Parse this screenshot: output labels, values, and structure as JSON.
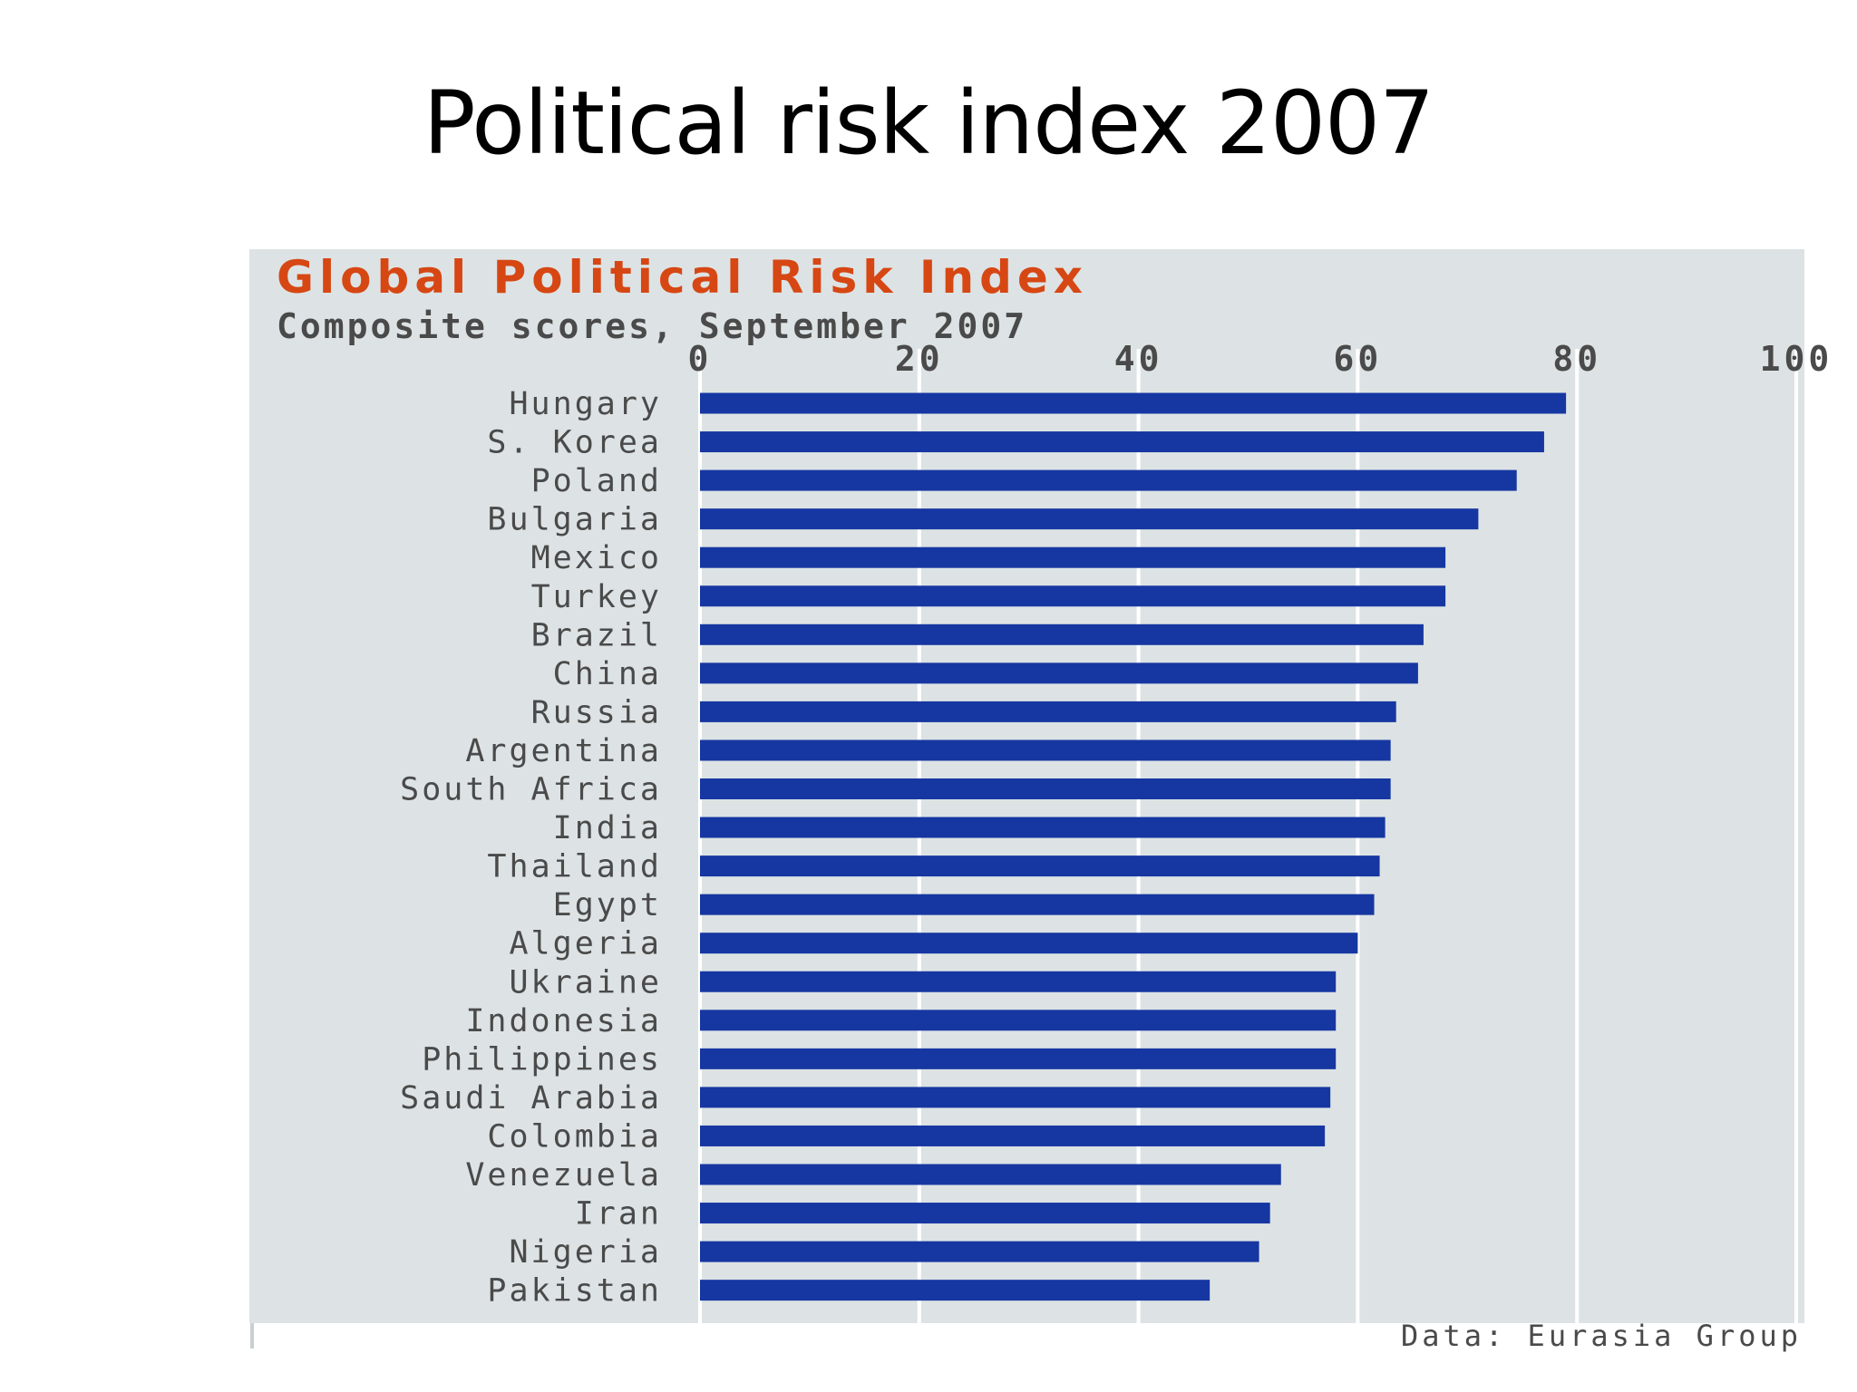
{
  "slide": {
    "title": "Political risk index 2007"
  },
  "colors": {
    "panel": "#dde3e4",
    "bar": "#1637a2",
    "heading": "#d64714",
    "text": "#4a4a4a",
    "gridline": "#ffffff"
  },
  "chart_data": {
    "type": "bar",
    "orientation": "horizontal",
    "title": "Global Political Risk Index",
    "subtitle": "Composite scores, September 2007",
    "source": "Data: Eurasia Group",
    "xlim": [
      0,
      100
    ],
    "xticks": [
      "0",
      "20",
      "40",
      "60",
      "80",
      "100"
    ],
    "grid": true,
    "categories": [
      "Hungary",
      "S. Korea",
      "Poland",
      "Bulgaria",
      "Mexico",
      "Turkey",
      "Brazil",
      "China",
      "Russia",
      "Argentina",
      "South Africa",
      "India",
      "Thailand",
      "Egypt",
      "Algeria",
      "Ukraine",
      "Indonesia",
      "Philippines",
      "Saudi Arabia",
      "Colombia",
      "Venezuela",
      "Iran",
      "Nigeria",
      "Pakistan"
    ],
    "values": [
      79,
      77,
      74.5,
      71,
      68,
      68,
      66,
      65.5,
      63.5,
      63,
      63,
      62.5,
      62,
      61.5,
      60,
      58,
      58,
      58,
      57.5,
      57,
      53,
      52,
      51,
      46.5
    ]
  }
}
